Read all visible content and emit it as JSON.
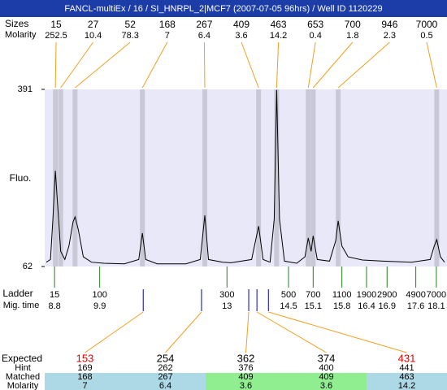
{
  "chart_data": {
    "type": "electropherogram",
    "title": "FANCL-multiEx / 16 / SI_HNRPL_2|MCF7 (2007-07-05 96hrs) / Well ID 1120229",
    "y_label": "Fluo.",
    "ylim": [
      62,
      391
    ],
    "yticks": [
      62,
      391
    ],
    "xlim": [
      8.56,
      18.36
    ],
    "background": "#e8e8f8",
    "line_color": "#000000",
    "peaks": {
      "size_label": "Sizes",
      "molarity_label": "Molarity",
      "sizes": [
        15,
        27,
        52,
        168,
        267,
        409,
        463,
        653,
        700,
        946,
        7000
      ],
      "molarity": [
        252.5,
        10.4,
        78.3,
        7,
        6.4,
        3.6,
        14.2,
        0.4,
        1.8,
        2.3,
        0.5
      ],
      "times": [
        8.82,
        8.95,
        9.3,
        10.94,
        12.46,
        13.77,
        14.21,
        14.98,
        15.1,
        15.71,
        18.11
      ],
      "band_color": "#c8c8d6",
      "line_color": "#f0a020"
    },
    "trace": {
      "x": [
        8.6,
        8.7,
        8.76,
        8.82,
        8.88,
        8.95,
        9.05,
        9.15,
        9.25,
        9.3,
        9.38,
        9.5,
        9.7,
        10.0,
        10.5,
        10.85,
        10.94,
        11.02,
        11.3,
        12.0,
        12.35,
        12.46,
        12.55,
        12.9,
        13.1,
        13.6,
        13.77,
        13.88,
        14.05,
        14.15,
        14.21,
        14.28,
        14.4,
        14.7,
        14.9,
        14.98,
        15.05,
        15.1,
        15.2,
        15.5,
        15.65,
        15.71,
        15.8,
        15.95,
        16.3,
        16.8,
        17.5,
        17.95,
        18.05,
        18.11,
        18.2,
        18.3
      ],
      "values": [
        70,
        75,
        150,
        240,
        170,
        90,
        75,
        100,
        145,
        154,
        130,
        80,
        70,
        68,
        67,
        75,
        124,
        75,
        67,
        67,
        75,
        157,
        75,
        70,
        69,
        75,
        137,
        75,
        70,
        150,
        390,
        150,
        72,
        68,
        80,
        115,
        90,
        119,
        75,
        72,
        110,
        147,
        100,
        80,
        74,
        72,
        70,
        75,
        100,
        112,
        80,
        70
      ]
    },
    "ladder": {
      "label": "Ladder",
      "time_label": "Mig. time",
      "sizes": [
        15,
        100,
        300,
        500,
        700,
        1100,
        1900,
        2900,
        4900,
        7000
      ],
      "times": [
        8.8,
        9.9,
        13,
        14.5,
        15.1,
        15.8,
        16.4,
        16.9,
        17.6,
        18.1
      ],
      "color": "#208020"
    },
    "expected": {
      "times": [
        10.96,
        12.38,
        13.53,
        13.73,
        14.01
      ],
      "marker_color": "#0000c0",
      "row_labels": [
        "Expected",
        "Hint",
        "Matched",
        "Molarity"
      ],
      "values": [
        153,
        254,
        362,
        374,
        431
      ],
      "colors": [
        "#e00000",
        "#000000",
        "#000000",
        "#000000",
        "#e00000"
      ],
      "hint": [
        169,
        262,
        376,
        400,
        441
      ],
      "matched": [
        168,
        267,
        409,
        409,
        463
      ],
      "molarity": [
        7,
        6.4,
        3.6,
        3.6,
        14.2
      ],
      "cell_colors": [
        "#add8e6",
        "#add8e6",
        "#90ee90",
        "#90ee90",
        "#add8e6"
      ]
    }
  }
}
